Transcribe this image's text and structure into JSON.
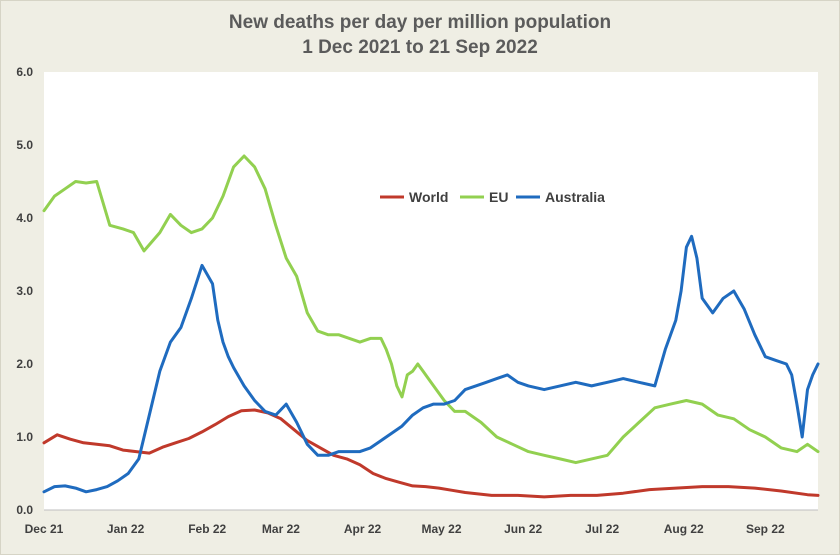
{
  "chart_data": {
    "type": "line",
    "title": "New deaths per day per million population",
    "subtitle": "1 Dec 2021 to 21 Sep 2022",
    "xlabel": "",
    "ylabel": "",
    "ylim": [
      0,
      6
    ],
    "yticks": [
      "0.0",
      "1.0",
      "2.0",
      "3.0",
      "4.0",
      "5.0",
      "6.0"
    ],
    "xlim": [
      0,
      294
    ],
    "xticks": [
      {
        "label": "Dec 21",
        "day": 0
      },
      {
        "label": "Jan 22",
        "day": 31
      },
      {
        "label": "Feb 22",
        "day": 62
      },
      {
        "label": "Mar 22",
        "day": 90
      },
      {
        "label": "Apr 22",
        "day": 121
      },
      {
        "label": "May 22",
        "day": 151
      },
      {
        "label": "Jun 22",
        "day": 182
      },
      {
        "label": "Jul 22",
        "day": 212
      },
      {
        "label": "Aug 22",
        "day": 243
      },
      {
        "label": "Sep 22",
        "day": 274
      }
    ],
    "grid": false,
    "legend_position": "upper-center",
    "series": [
      {
        "name": "World",
        "color": "#c0392b",
        "x": [
          0,
          5,
          10,
          15,
          20,
          25,
          30,
          35,
          40,
          45,
          50,
          55,
          60,
          65,
          70,
          75,
          80,
          85,
          90,
          95,
          100,
          105,
          110,
          115,
          120,
          125,
          130,
          135,
          140,
          145,
          150,
          155,
          160,
          170,
          180,
          190,
          200,
          210,
          220,
          230,
          240,
          250,
          260,
          270,
          280,
          290,
          294
        ],
        "y": [
          0.92,
          1.03,
          0.97,
          0.92,
          0.9,
          0.88,
          0.82,
          0.8,
          0.78,
          0.86,
          0.92,
          0.98,
          1.07,
          1.17,
          1.28,
          1.36,
          1.37,
          1.33,
          1.25,
          1.1,
          0.95,
          0.85,
          0.75,
          0.7,
          0.62,
          0.5,
          0.43,
          0.38,
          0.33,
          0.32,
          0.3,
          0.27,
          0.24,
          0.2,
          0.2,
          0.18,
          0.2,
          0.2,
          0.23,
          0.28,
          0.3,
          0.32,
          0.32,
          0.3,
          0.26,
          0.21,
          0.2
        ]
      },
      {
        "name": "EU",
        "color": "#92d050",
        "x": [
          0,
          4,
          8,
          12,
          16,
          20,
          25,
          30,
          34,
          38,
          44,
          48,
          52,
          56,
          60,
          64,
          68,
          72,
          76,
          80,
          84,
          88,
          92,
          96,
          100,
          104,
          108,
          112,
          116,
          120,
          124,
          128,
          130,
          132,
          134,
          136,
          138,
          140,
          142,
          144,
          148,
          152,
          156,
          160,
          166,
          172,
          178,
          184,
          190,
          196,
          202,
          208,
          214,
          220,
          226,
          232,
          238,
          244,
          250,
          256,
          262,
          268,
          274,
          280,
          286,
          290,
          294
        ],
        "y": [
          4.1,
          4.3,
          4.4,
          4.5,
          4.48,
          4.5,
          3.9,
          3.85,
          3.8,
          3.55,
          3.8,
          4.05,
          3.9,
          3.8,
          3.85,
          4.0,
          4.3,
          4.7,
          4.85,
          4.7,
          4.4,
          3.9,
          3.45,
          3.2,
          2.7,
          2.45,
          2.4,
          2.4,
          2.35,
          2.3,
          2.35,
          2.35,
          2.2,
          2.0,
          1.7,
          1.55,
          1.85,
          1.9,
          2.0,
          1.9,
          1.7,
          1.5,
          1.35,
          1.35,
          1.2,
          1.0,
          0.9,
          0.8,
          0.75,
          0.7,
          0.65,
          0.7,
          0.75,
          1.0,
          1.2,
          1.4,
          1.45,
          1.5,
          1.45,
          1.3,
          1.25,
          1.1,
          1.0,
          0.85,
          0.8,
          0.9,
          0.8
        ]
      },
      {
        "name": "Australia",
        "color": "#1f6bbf",
        "x": [
          0,
          4,
          8,
          12,
          16,
          20,
          24,
          28,
          32,
          36,
          40,
          44,
          48,
          52,
          56,
          60,
          64,
          66,
          68,
          70,
          72,
          76,
          80,
          84,
          88,
          92,
          96,
          100,
          104,
          108,
          112,
          116,
          120,
          124,
          128,
          132,
          136,
          140,
          144,
          148,
          152,
          156,
          160,
          164,
          168,
          172,
          176,
          180,
          184,
          190,
          196,
          202,
          208,
          214,
          220,
          226,
          232,
          236,
          240,
          242,
          244,
          246,
          248,
          250,
          254,
          258,
          262,
          266,
          270,
          274,
          278,
          282,
          284,
          286,
          288,
          290,
          292,
          294
        ],
        "y": [
          0.25,
          0.32,
          0.33,
          0.3,
          0.25,
          0.28,
          0.32,
          0.4,
          0.5,
          0.7,
          1.3,
          1.9,
          2.3,
          2.5,
          2.9,
          3.35,
          3.1,
          2.6,
          2.3,
          2.1,
          1.95,
          1.7,
          1.5,
          1.35,
          1.3,
          1.45,
          1.2,
          0.9,
          0.75,
          0.75,
          0.8,
          0.8,
          0.8,
          0.85,
          0.95,
          1.05,
          1.15,
          1.3,
          1.4,
          1.45,
          1.45,
          1.5,
          1.65,
          1.7,
          1.75,
          1.8,
          1.85,
          1.75,
          1.7,
          1.65,
          1.7,
          1.75,
          1.7,
          1.75,
          1.8,
          1.75,
          1.7,
          2.2,
          2.6,
          3.0,
          3.6,
          3.75,
          3.45,
          2.9,
          2.7,
          2.9,
          3.0,
          2.75,
          2.4,
          2.1,
          2.05,
          2.0,
          1.85,
          1.45,
          1.0,
          1.65,
          1.85,
          2.0
        ]
      }
    ]
  }
}
